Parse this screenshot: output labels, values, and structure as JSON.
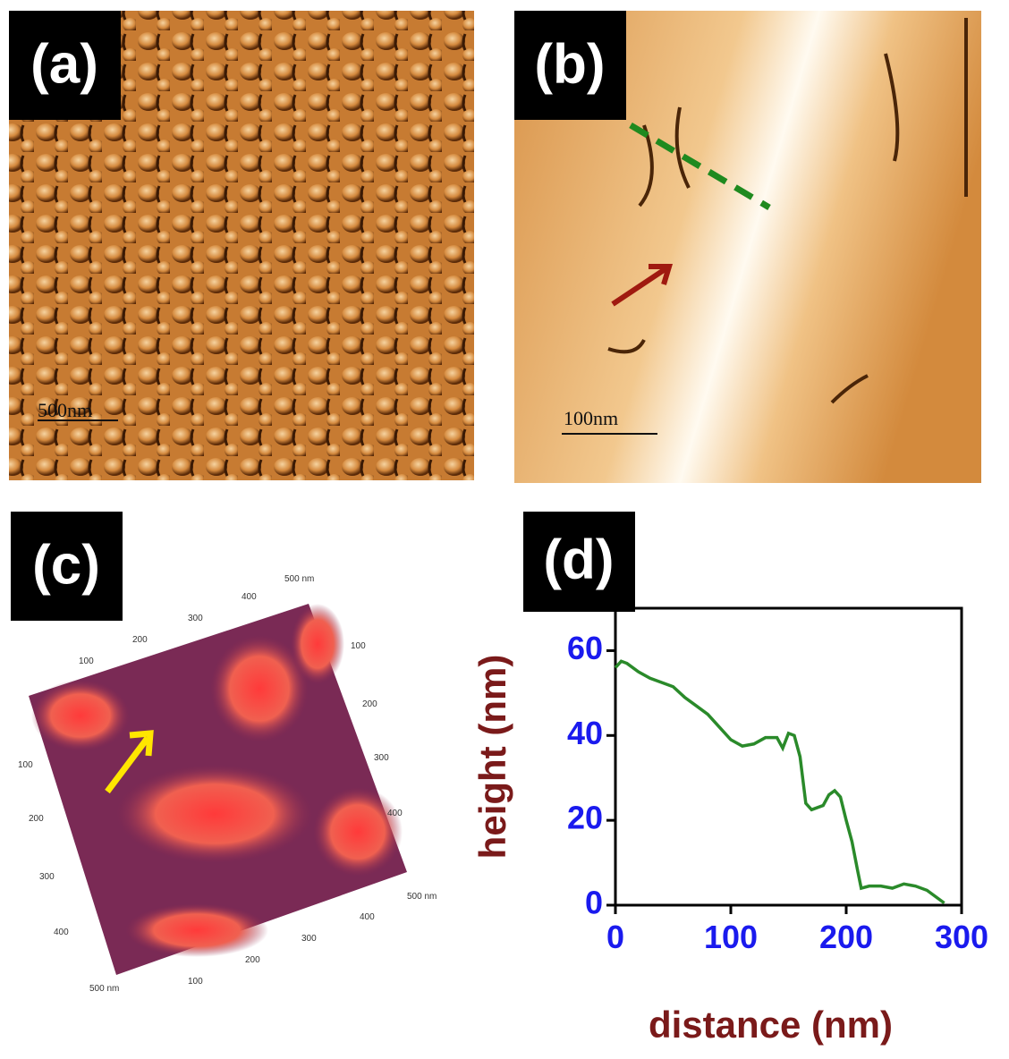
{
  "panels": {
    "a": {
      "label": "(a)",
      "scale_bar": "500nm"
    },
    "b": {
      "label": "(b)",
      "scale_bar": "100nm"
    },
    "c": {
      "label": "(c)",
      "axis_labels": {
        "top": [
          "100",
          "200",
          "300",
          "400",
          "500 nm"
        ],
        "right": [
          "100",
          "200",
          "300",
          "400",
          "500 nm"
        ],
        "left": [
          "100",
          "200",
          "300",
          "400",
          "500 nm"
        ],
        "bottom": [
          "100",
          "200",
          "300",
          "400"
        ]
      }
    },
    "d": {
      "label": "(d)"
    }
  },
  "chart_data": {
    "type": "line",
    "x_label": "distance (nm)",
    "y_label": "height (nm)",
    "x": [
      0,
      5,
      10,
      20,
      30,
      40,
      50,
      60,
      70,
      80,
      90,
      100,
      110,
      120,
      130,
      140,
      145,
      150,
      155,
      160,
      165,
      170,
      180,
      185,
      190,
      195,
      200,
      205,
      210,
      213,
      220,
      230,
      240,
      250,
      260,
      270,
      280,
      285
    ],
    "series": [
      {
        "color": "#2a8a2a",
        "values": [
          56,
          57.5,
          57,
          55,
          53.5,
          52.5,
          51.5,
          49,
          47,
          45,
          42,
          39,
          37.5,
          38,
          39.5,
          39.5,
          37,
          40.5,
          40,
          35,
          24,
          22.5,
          23.5,
          26,
          27,
          25.5,
          20,
          15,
          8,
          4,
          4.5,
          4.5,
          4,
          5,
          4.5,
          3.5,
          1.5,
          0.5
        ]
      }
    ],
    "xlim": [
      0,
      300
    ],
    "xticks": [
      0,
      100,
      200,
      300
    ],
    "ylim": [
      0,
      70
    ],
    "yticks": [
      0,
      20,
      40,
      60
    ],
    "tick_label_color": "#1a1aee",
    "axis_label_color": "#7a1a1a"
  }
}
